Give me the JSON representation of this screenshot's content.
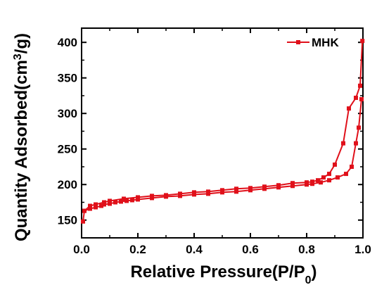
{
  "chart_data": {
    "type": "line",
    "xlabel": "Relative Pressure(P/P0)",
    "ylabel": "Quantity Adsorbed(cm3/g)",
    "xlim": [
      0,
      1.0
    ],
    "ylim": [
      125,
      420
    ],
    "x_ticks": [
      0.0,
      0.2,
      0.4,
      0.6,
      0.8,
      1.0
    ],
    "y_ticks": [
      150,
      200,
      250,
      300,
      350,
      400
    ],
    "grid": false,
    "legend_position": "top-right",
    "series_color": "#e0101a",
    "series": [
      {
        "name": "MHK",
        "branches": [
          {
            "x": [
              0.005,
              0.01,
              0.03,
              0.05,
              0.07,
              0.08,
              0.1,
              0.12,
              0.14,
              0.16,
              0.18,
              0.2,
              0.25,
              0.3,
              0.35,
              0.4,
              0.45,
              0.5,
              0.55,
              0.6,
              0.65,
              0.7,
              0.75,
              0.8,
              0.82,
              0.85,
              0.88,
              0.91,
              0.94,
              0.96,
              0.975,
              0.985,
              0.995
            ],
            "y": [
              148,
              163,
              166,
              168,
              170,
              172,
              173,
              175,
              176,
              177,
              178,
              179,
              181,
              183,
              184,
              186,
              187,
              189,
              190,
              192,
              194,
              196,
              198,
              200,
              201,
              203,
              206,
              210,
              215,
              225,
              258,
              280,
              320
            ]
          },
          {
            "x": [
              0.998,
              0.99,
              0.975,
              0.95,
              0.93,
              0.9,
              0.88,
              0.86,
              0.84,
              0.82,
              0.8,
              0.75,
              0.7,
              0.65,
              0.6,
              0.55,
              0.5,
              0.45,
              0.4,
              0.35,
              0.3,
              0.25,
              0.2,
              0.15,
              0.1,
              0.08,
              0.05,
              0.03,
              0.01
            ],
            "y": [
              402,
              339,
              322,
              307,
              258,
              228,
              215,
              210,
              206,
              204,
              203,
              202,
              199,
              197,
              195,
              194,
              192,
              190,
              189,
              187,
              185,
              184,
              182,
              180,
              177,
              175,
              172,
              170,
              163
            ]
          }
        ]
      }
    ]
  }
}
